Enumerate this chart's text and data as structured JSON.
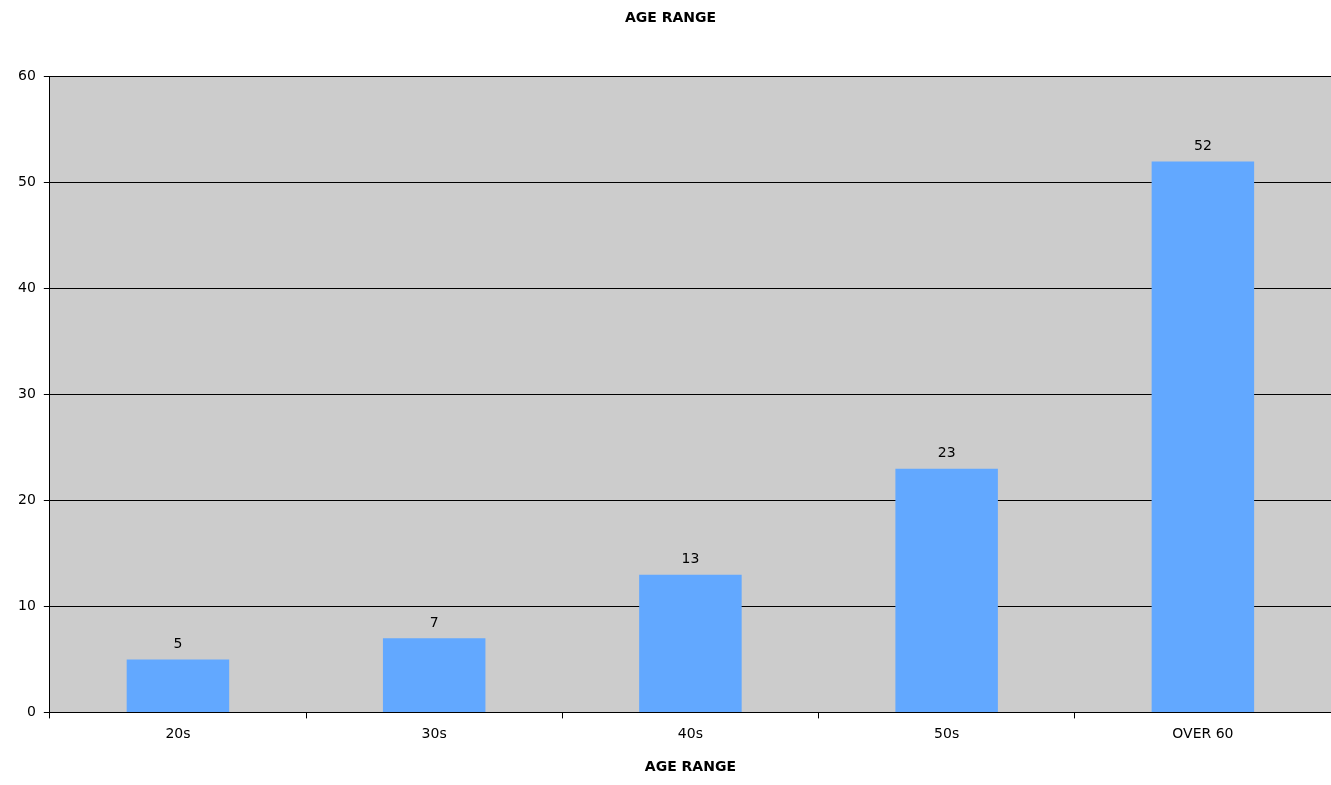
{
  "chart_data": {
    "type": "bar",
    "title": "AGE RANGE",
    "xlabel": "AGE RANGE",
    "categories": [
      "20s",
      "30s",
      "40s",
      "50s",
      "OVER 60"
    ],
    "values": [
      5,
      7,
      13,
      23,
      52
    ],
    "color": "#62a8ff",
    "ylim": [
      0,
      60
    ],
    "yticks": [
      0,
      10,
      20,
      30,
      40,
      50,
      60
    ],
    "grid": "y",
    "data_labels": true
  }
}
